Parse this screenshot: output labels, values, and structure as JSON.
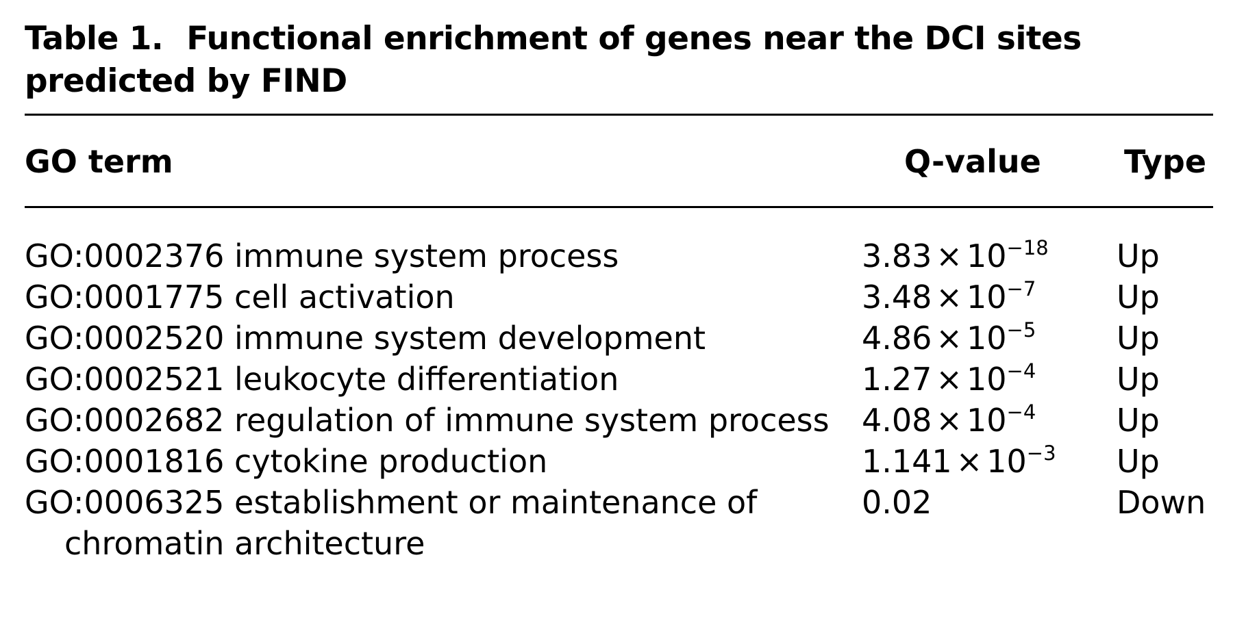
{
  "caption": {
    "label": "Table 1.",
    "text": "Functional enrichment of genes near the DCI sites predicted by FIND"
  },
  "columns": {
    "term": "GO term",
    "q": "Q-value",
    "type": "Type"
  },
  "rows": [
    {
      "go_id": "GO:0002376",
      "name": "immune system process",
      "q_mantissa": "3.83",
      "q_exponent": "−18",
      "type": "Up"
    },
    {
      "go_id": "GO:0001775",
      "name": "cell activation",
      "q_mantissa": "3.48",
      "q_exponent": "−7",
      "type": "Up"
    },
    {
      "go_id": "GO:0002520",
      "name": "immune system development",
      "q_mantissa": "4.86",
      "q_exponent": "−5",
      "type": "Up"
    },
    {
      "go_id": "GO:0002521",
      "name": "leukocyte differentiation",
      "q_mantissa": "1.27",
      "q_exponent": "−4",
      "type": "Up"
    },
    {
      "go_id": "GO:0002682",
      "name": "regulation of immune system process",
      "q_mantissa": "4.08",
      "q_exponent": "−4",
      "type": "Up"
    },
    {
      "go_id": "GO:0001816",
      "name": "cytokine production",
      "q_mantissa": "1.141",
      "q_exponent": "−3",
      "type": "Up"
    },
    {
      "go_id": "GO:0006325",
      "name": "establishment or maintenance of chromatin architecture",
      "q_plain": "0.02",
      "type": "Down"
    }
  ],
  "symbols": {
    "times": "×",
    "base": "10"
  }
}
